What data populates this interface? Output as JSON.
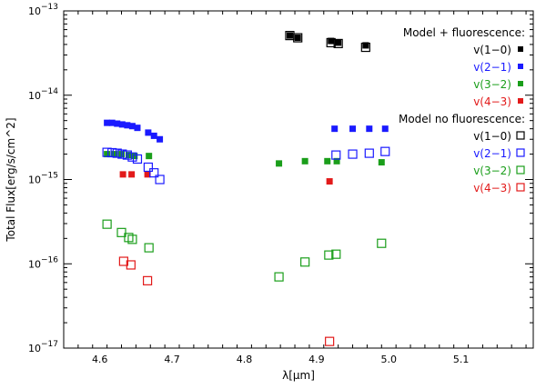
{
  "chart_data": {
    "type": "scatter",
    "xlabel": "λ[μm]",
    "ylabel": "Total Flux[erg/s/cm^2]",
    "x_range": [
      4.55,
      5.2
    ],
    "y_range": [
      1e-17,
      1e-13
    ],
    "y_scale": "log",
    "x_ticks": [
      4.6,
      4.7,
      4.8,
      4.9,
      5.0,
      5.1
    ],
    "x_tick_labels": [
      "4.6",
      "4.7",
      "4.8",
      "4.9",
      "5.0",
      "5.1"
    ],
    "y_ticks": [
      1e-17,
      1e-16,
      1e-15,
      1e-14,
      1e-13
    ],
    "y_tick_labels": [
      {
        "base": "10",
        "exp": "−17"
      },
      {
        "base": "10",
        "exp": "−16"
      },
      {
        "base": "10",
        "exp": "−15"
      },
      {
        "base": "10",
        "exp": "−14"
      },
      {
        "base": "10",
        "exp": "−13"
      }
    ],
    "grid": false,
    "legend_position": "top-right",
    "legend_groups": [
      {
        "title": "Model + fluorescence:",
        "entries": [
          "v(1−0)",
          "v(2−1)",
          "v(3−2)",
          "v(4−3)"
        ],
        "marker": "filled-square"
      },
      {
        "title": "Model no fluorescence:",
        "entries": [
          "v(1−0)",
          "v(2−1)",
          "v(3−2)",
          "v(4−3)"
        ],
        "marker": "open-square"
      }
    ],
    "series": [
      {
        "group": 0,
        "color": "#000000",
        "marker": "filled",
        "points": [
          [
            4.863,
            5.1e-14
          ],
          [
            4.874,
            4.8e-14
          ],
          [
            4.92,
            4.4e-14
          ],
          [
            4.93,
            4.2e-14
          ],
          [
            4.968,
            3.9e-14
          ]
        ]
      },
      {
        "group": 0,
        "color": "#1a1aff",
        "marker": "filled",
        "points": [
          [
            4.61,
            4.7e-15
          ],
          [
            4.617,
            4.7e-15
          ],
          [
            4.624,
            4.6e-15
          ],
          [
            4.631,
            4.5e-15
          ],
          [
            4.638,
            4.4e-15
          ],
          [
            4.645,
            4.3e-15
          ],
          [
            4.652,
            4.1e-15
          ],
          [
            4.667,
            3.6e-15
          ],
          [
            4.675,
            3.3e-15
          ],
          [
            4.683,
            3e-15
          ],
          [
            4.925,
            4e-15
          ],
          [
            4.95,
            4e-15
          ],
          [
            4.973,
            4e-15
          ],
          [
            4.995,
            4e-15
          ]
        ]
      },
      {
        "group": 0,
        "color": "#1a9e1a",
        "marker": "filled",
        "points": [
          [
            4.61,
            2e-15
          ],
          [
            4.62,
            2e-15
          ],
          [
            4.63,
            2e-15
          ],
          [
            4.64,
            1.95e-15
          ],
          [
            4.648,
            1.9e-15
          ],
          [
            4.668,
            1.9e-15
          ],
          [
            4.848,
            1.55e-15
          ],
          [
            4.884,
            1.65e-15
          ],
          [
            4.915,
            1.65e-15
          ],
          [
            4.928,
            1.65e-15
          ],
          [
            4.99,
            1.6e-15
          ]
        ]
      },
      {
        "group": 0,
        "color": "#e21a1a",
        "marker": "filled",
        "points": [
          [
            4.632,
            1.15e-15
          ],
          [
            4.644,
            1.15e-15
          ],
          [
            4.666,
            1.15e-15
          ],
          [
            4.918,
            9.5e-16
          ]
        ]
      },
      {
        "group": 1,
        "color": "#000000",
        "marker": "open",
        "points": [
          [
            4.863,
            5.1e-14
          ],
          [
            4.874,
            4.8e-14
          ],
          [
            4.92,
            4.2e-14
          ],
          [
            4.93,
            4.1e-14
          ],
          [
            4.968,
            3.7e-14
          ]
        ]
      },
      {
        "group": 1,
        "color": "#1a1aff",
        "marker": "open",
        "points": [
          [
            4.61,
            2.1e-15
          ],
          [
            4.617,
            2.08e-15
          ],
          [
            4.624,
            2.05e-15
          ],
          [
            4.631,
            2e-15
          ],
          [
            4.638,
            1.95e-15
          ],
          [
            4.645,
            1.85e-15
          ],
          [
            4.652,
            1.75e-15
          ],
          [
            4.667,
            1.4e-15
          ],
          [
            4.675,
            1.2e-15
          ],
          [
            4.683,
            1e-15
          ],
          [
            4.927,
            1.95e-15
          ],
          [
            4.95,
            2e-15
          ],
          [
            4.973,
            2.05e-15
          ],
          [
            4.995,
            2.15e-15
          ]
        ]
      },
      {
        "group": 1,
        "color": "#1a9e1a",
        "marker": "open",
        "points": [
          [
            4.61,
            2.95e-16
          ],
          [
            4.63,
            2.35e-16
          ],
          [
            4.64,
            2.05e-16
          ],
          [
            4.645,
            1.95e-16
          ],
          [
            4.668,
            1.55e-16
          ],
          [
            4.848,
            7e-17
          ],
          [
            4.884,
            1.05e-16
          ],
          [
            4.917,
            1.27e-16
          ],
          [
            4.927,
            1.3e-16
          ],
          [
            4.99,
            1.75e-16
          ]
        ]
      },
      {
        "group": 1,
        "color": "#e21a1a",
        "marker": "open",
        "points": [
          [
            4.633,
            1.07e-16
          ],
          [
            4.643,
            9.7e-17
          ],
          [
            4.666,
            6.3e-17
          ],
          [
            4.918,
            1.2e-17
          ]
        ]
      }
    ]
  }
}
